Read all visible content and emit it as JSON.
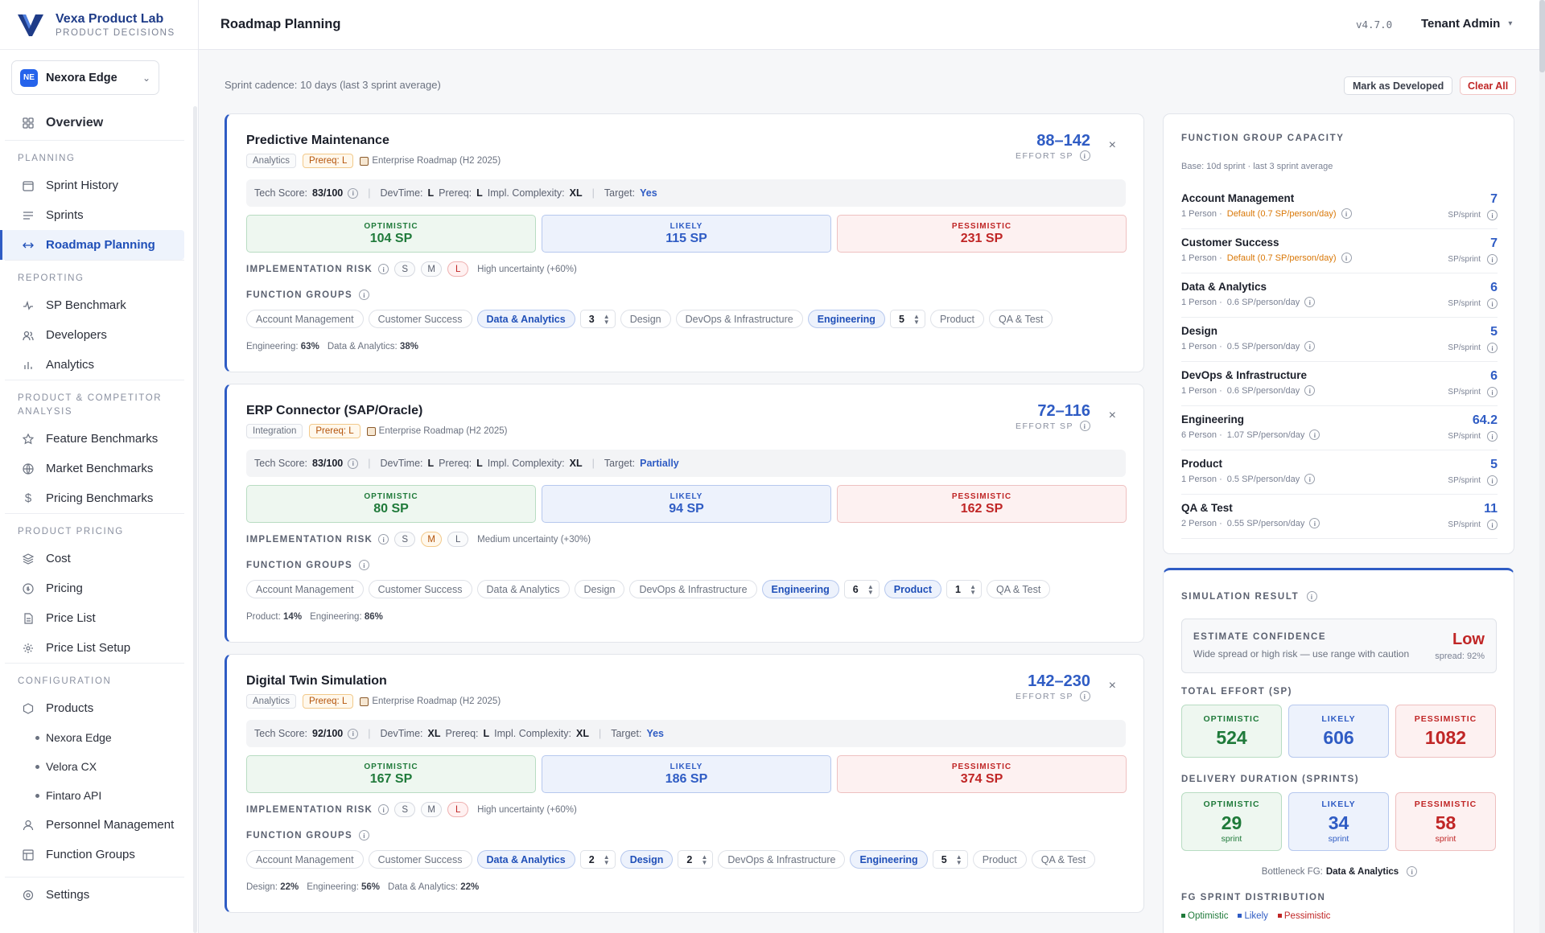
{
  "brand": {
    "name": "Vexa Product Lab",
    "subtitle": "PRODUCT DECISIONS"
  },
  "product_select": {
    "badge": "NE",
    "label": "Nexora Edge"
  },
  "nav": {
    "overview": "Overview",
    "sections": {
      "planning": "PLANNING",
      "reporting": "REPORTING",
      "analysis": "PRODUCT & COMPETITOR ANALYSIS",
      "pricing": "PRODUCT PRICING",
      "config": "CONFIGURATION"
    },
    "items": {
      "sprint_history": "Sprint History",
      "sprints": "Sprints",
      "roadmap": "Roadmap Planning",
      "sp_benchmark": "SP Benchmark",
      "developers": "Developers",
      "analytics": "Analytics",
      "feature_bench": "Feature Benchmarks",
      "market_bench": "Market Benchmarks",
      "pricing_bench": "Pricing Benchmarks",
      "cost": "Cost",
      "pricing": "Pricing",
      "price_list": "Price List",
      "price_list_setup": "Price List Setup",
      "products": "Products",
      "personnel": "Personnel Management",
      "function_groups": "Function Groups",
      "settings": "Settings"
    },
    "products": [
      "Nexora Edge",
      "Velora CX",
      "Fintaro API"
    ]
  },
  "header": {
    "title": "Roadmap Planning",
    "version": "v4.7.0",
    "tenant": "Tenant Admin"
  },
  "main": {
    "cadence": "Sprint cadence: 10 days (last 3 sprint average)",
    "mark_developed": "Mark as Developed",
    "clear_all": "Clear All"
  },
  "labels": {
    "effort_sp": "EFFORT SP",
    "tech_score": "Tech Score:",
    "devtime": "DevTime:",
    "prereq": "Prereq:",
    "impl": "Impl. Complexity:",
    "target": "Target:",
    "optimistic": "OPTIMISTIC",
    "likely": "LIKELY",
    "pessimistic": "PESSIMISTIC",
    "impl_risk": "IMPLEMENTATION RISK",
    "function_groups": "FUNCTION GROUPS",
    "risk_s": "S",
    "risk_m": "M",
    "risk_l": "L",
    "info": "i",
    "close": "×"
  },
  "cards": [
    {
      "title": "Predictive Maintenance",
      "category": "Analytics",
      "prereq_tag": "Prereq: L",
      "roadmap": "Enterprise Roadmap (H2 2025)",
      "effort": "88–142",
      "tech_score": "83/100",
      "devtime": "L",
      "prereq": "L",
      "impl": "XL",
      "target": "Yes",
      "optimistic": "104 SP",
      "likely": "115 SP",
      "pessimistic": "231 SP",
      "risk_level": "L",
      "risk_note": "High uncertainty (+60%)",
      "fgs": [
        {
          "label": "Account Management",
          "on": false
        },
        {
          "label": "Customer Success",
          "on": false
        },
        {
          "label": "Data & Analytics",
          "on": true,
          "count": "3"
        },
        {
          "label": "Design",
          "on": false
        },
        {
          "label": "DevOps & Infrastructure",
          "on": false
        },
        {
          "label": "Engineering",
          "on": true,
          "count": "5"
        },
        {
          "label": "Product",
          "on": false
        },
        {
          "label": "QA & Test",
          "on": false
        }
      ],
      "split": [
        {
          "name": "Engineering:",
          "pct": "63%"
        },
        {
          "name": "Data & Analytics:",
          "pct": "38%"
        }
      ]
    },
    {
      "title": "ERP Connector (SAP/Oracle)",
      "category": "Integration",
      "prereq_tag": "Prereq: L",
      "roadmap": "Enterprise Roadmap (H2 2025)",
      "effort": "72–116",
      "tech_score": "83/100",
      "devtime": "L",
      "prereq": "L",
      "impl": "XL",
      "target": "Partially",
      "optimistic": "80 SP",
      "likely": "94 SP",
      "pessimistic": "162 SP",
      "risk_level": "M",
      "risk_note": "Medium uncertainty (+30%)",
      "fgs": [
        {
          "label": "Account Management",
          "on": false
        },
        {
          "label": "Customer Success",
          "on": false
        },
        {
          "label": "Data & Analytics",
          "on": false
        },
        {
          "label": "Design",
          "on": false
        },
        {
          "label": "DevOps & Infrastructure",
          "on": false
        },
        {
          "label": "Engineering",
          "on": true,
          "count": "6"
        },
        {
          "label": "Product",
          "on": true,
          "count": "1"
        },
        {
          "label": "QA & Test",
          "on": false
        }
      ],
      "split": [
        {
          "name": "Product:",
          "pct": "14%"
        },
        {
          "name": "Engineering:",
          "pct": "86%"
        }
      ]
    },
    {
      "title": "Digital Twin Simulation",
      "category": "Analytics",
      "prereq_tag": "Prereq: L",
      "roadmap": "Enterprise Roadmap (H2 2025)",
      "effort": "142–230",
      "tech_score": "92/100",
      "devtime": "XL",
      "prereq": "L",
      "impl": "XL",
      "target": "Yes",
      "optimistic": "167 SP",
      "likely": "186 SP",
      "pessimistic": "374 SP",
      "risk_level": "L",
      "risk_note": "High uncertainty (+60%)",
      "fgs": [
        {
          "label": "Account Management",
          "on": false
        },
        {
          "label": "Customer Success",
          "on": false
        },
        {
          "label": "Data & Analytics",
          "on": true,
          "count": "2"
        },
        {
          "label": "Design",
          "on": true,
          "count": "2"
        },
        {
          "label": "DevOps & Infrastructure",
          "on": false
        },
        {
          "label": "Engineering",
          "on": true,
          "count": "5"
        },
        {
          "label": "Product",
          "on": false
        },
        {
          "label": "QA & Test",
          "on": false
        }
      ],
      "split": [
        {
          "name": "Design:",
          "pct": "22%"
        },
        {
          "name": "Engineering:",
          "pct": "56%"
        },
        {
          "name": "Data & Analytics:",
          "pct": "22%"
        }
      ]
    }
  ],
  "capacity": {
    "title": "FUNCTION GROUP CAPACITY",
    "base": "Base: 10d sprint · last 3 sprint average",
    "unit": "SP/sprint",
    "rows": [
      {
        "name": "Account Management",
        "persons": "1 Person ·",
        "rate": "Default (0.7 SP/person/day)",
        "warn": true,
        "value": "7"
      },
      {
        "name": "Customer Success",
        "persons": "1 Person ·",
        "rate": "Default (0.7 SP/person/day)",
        "warn": true,
        "value": "7"
      },
      {
        "name": "Data & Analytics",
        "persons": "1 Person ·",
        "rate": "0.6 SP/person/day",
        "warn": false,
        "value": "6"
      },
      {
        "name": "Design",
        "persons": "1 Person ·",
        "rate": "0.5 SP/person/day",
        "warn": false,
        "value": "5"
      },
      {
        "name": "DevOps & Infrastructure",
        "persons": "1 Person ·",
        "rate": "0.6 SP/person/day",
        "warn": false,
        "value": "6"
      },
      {
        "name": "Engineering",
        "persons": "6 Person ·",
        "rate": "1.07 SP/person/day",
        "warn": false,
        "value": "64.2"
      },
      {
        "name": "Product",
        "persons": "1 Person ·",
        "rate": "0.5 SP/person/day",
        "warn": false,
        "value": "5"
      },
      {
        "name": "QA & Test",
        "persons": "2 Person ·",
        "rate": "0.55 SP/person/day",
        "warn": false,
        "value": "11"
      }
    ]
  },
  "simulation": {
    "title": "SIMULATION RESULT",
    "confidence_label": "ESTIMATE CONFIDENCE",
    "confidence_desc": "Wide spread or high risk — use range with caution",
    "confidence_value": "Low",
    "spread": "spread: 92%",
    "total_label": "TOTAL EFFORT (SP)",
    "total": {
      "optimistic": "524",
      "likely": "606",
      "pessimistic": "1082"
    },
    "duration_label": "DELIVERY DURATION (SPRINTS)",
    "duration": {
      "optimistic": "29",
      "likely": "34",
      "pessimistic": "58"
    },
    "sprint_unit": "sprint",
    "bottleneck_label": "Bottleneck FG:",
    "bottleneck_value": "Data & Analytics",
    "dist_label": "FG SPRINT DISTRIBUTION",
    "legend": {
      "optimistic": "Optimistic",
      "likely": "Likely",
      "pessimistic": "Pessimistic"
    }
  },
  "colors": {
    "accent": "#2f5cc4",
    "optimistic": "#1f7a3a",
    "pessimistic": "#c02626",
    "warning": "#d97706"
  }
}
